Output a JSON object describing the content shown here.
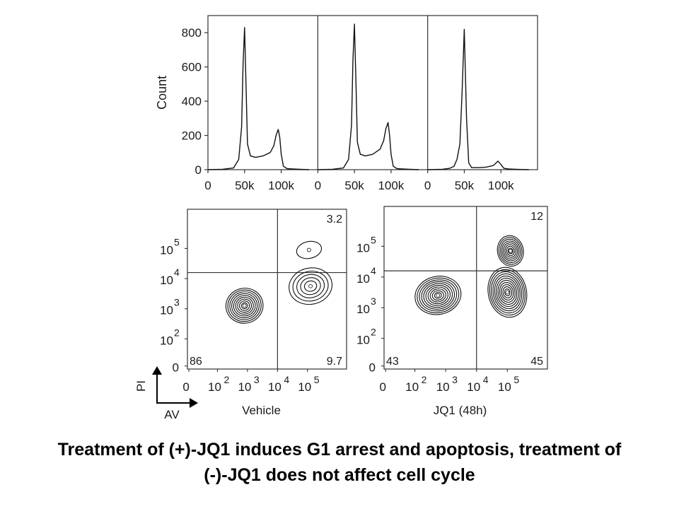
{
  "chart_data": [
    {
      "type": "line",
      "subtype": "histogram",
      "ylabel": "Count",
      "ylim": [
        0,
        900
      ],
      "y_ticks": [
        "0",
        "200",
        "400",
        "600",
        "800"
      ],
      "panels": [
        {
          "x_ticks": [
            "0",
            "50k",
            "100k"
          ],
          "x": [
            0,
            20,
            35,
            42,
            46,
            48,
            50,
            52,
            54,
            58,
            65,
            75,
            85,
            90,
            93,
            96,
            98,
            100,
            103,
            108,
            115,
            125,
            138
          ],
          "values": [
            0,
            2,
            10,
            60,
            250,
            620,
            830,
            500,
            150,
            80,
            72,
            80,
            100,
            140,
            200,
            235,
            190,
            90,
            20,
            6,
            4,
            2,
            0
          ]
        },
        {
          "x_ticks": [
            "0",
            "50k",
            "100k"
          ],
          "x": [
            0,
            20,
            35,
            42,
            46,
            48,
            50,
            52,
            54,
            58,
            65,
            75,
            85,
            90,
            93,
            96,
            98,
            100,
            103,
            108,
            115,
            125,
            138
          ],
          "values": [
            0,
            2,
            10,
            60,
            260,
            640,
            850,
            520,
            160,
            90,
            80,
            90,
            120,
            170,
            240,
            275,
            200,
            90,
            20,
            6,
            4,
            2,
            0
          ]
        },
        {
          "x_ticks": [
            "0",
            "50k",
            "100k"
          ],
          "x": [
            0,
            20,
            30,
            36,
            40,
            44,
            47,
            50,
            53,
            56,
            60,
            70,
            80,
            90,
            96,
            100,
            104,
            110,
            120,
            138
          ],
          "values": [
            0,
            2,
            8,
            20,
            60,
            150,
            450,
            820,
            300,
            40,
            12,
            12,
            15,
            25,
            50,
            30,
            8,
            4,
            2,
            0
          ]
        }
      ]
    },
    {
      "type": "scatter",
      "subtype": "contour",
      "xlabel": "AV",
      "ylabel": "PI",
      "x_scale": "log",
      "y_scale": "log",
      "x_ticks": [
        "0",
        "10",
        "10",
        "10",
        "10"
      ],
      "x_tick_exponents": [
        "",
        "2",
        "3",
        "4",
        "5"
      ],
      "y_ticks": [
        "0",
        "10",
        "10",
        "10",
        "10"
      ],
      "y_tick_exponents": [
        "",
        "2",
        "3",
        "4",
        "5"
      ],
      "panels": [
        {
          "name": "Vehicle",
          "quadrants": {
            "upper_right": "3.2",
            "lower_left": "86",
            "lower_right": "9.7"
          },
          "clusters": [
            {
              "cx": 1.9,
              "cy": 2.1,
              "rx": 0.62,
              "ry": 0.58,
              "rings": 9
            },
            {
              "cx": 4.1,
              "cy": 2.75,
              "rx": 0.72,
              "ry": 0.6,
              "rings": 5
            },
            {
              "cx": 4.05,
              "cy": 3.95,
              "rx": 0.42,
              "ry": 0.28,
              "rings": 1
            }
          ]
        },
        {
          "name": "JQ1 (48h)",
          "quadrants": {
            "upper_right": "12",
            "lower_left": "43",
            "lower_right": "45"
          },
          "clusters": [
            {
              "cx": 1.75,
              "cy": 2.4,
              "rx": 0.75,
              "ry": 0.62,
              "rings": 10
            },
            {
              "cx": 4.0,
              "cy": 2.5,
              "rx": 0.62,
              "ry": 0.82,
              "rings": 11
            },
            {
              "cx": 4.1,
              "cy": 3.85,
              "rx": 0.42,
              "ry": 0.5,
              "rings": 8
            }
          ]
        }
      ]
    }
  ],
  "caption": {
    "line1": "Treatment of (+)-JQ1 induces G1 arrest and apoptosis, treatment of",
    "line2": "(-)-JQ1 does not affect cell cycle"
  }
}
